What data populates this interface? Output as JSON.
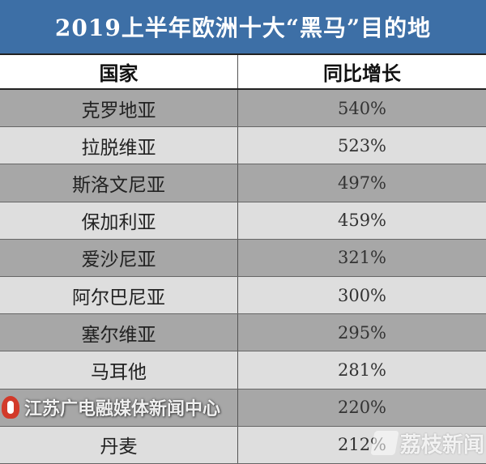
{
  "chart_data": {
    "type": "table",
    "title": "2019上半年欧洲十大“黑马”目的地",
    "columns": [
      "国家",
      "同比增长"
    ],
    "rows": [
      {
        "country": "克罗地亚",
        "growth": "540%"
      },
      {
        "country": "拉脱维亚",
        "growth": "523%"
      },
      {
        "country": "斯洛文尼亚",
        "growth": "497%"
      },
      {
        "country": "保加利亚",
        "growth": "459%"
      },
      {
        "country": "爱沙尼亚",
        "growth": "321%"
      },
      {
        "country": "阿尔巴尼亚",
        "growth": "300%"
      },
      {
        "country": "塞尔维亚",
        "growth": "295%"
      },
      {
        "country": "马耳他",
        "growth": "281%"
      },
      {
        "country": "",
        "growth": "220%"
      },
      {
        "country": "丹麦",
        "growth": "212%"
      }
    ],
    "values": [
      540,
      523,
      497,
      459,
      321,
      300,
      295,
      281,
      220,
      212
    ],
    "colors": {
      "title_bg": "#3d6fa6",
      "row_dark": "#a7a7a7",
      "row_light": "#dedede"
    }
  },
  "watermarks": {
    "left": "江苏广电融媒体新闻中心",
    "right": "荔枝新闻"
  }
}
